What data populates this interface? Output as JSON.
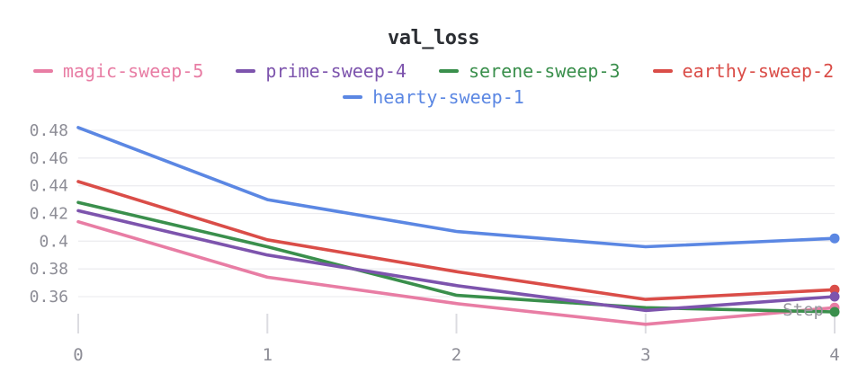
{
  "panel": {
    "title": "val_loss"
  },
  "chart_data": {
    "type": "line",
    "title": "val_loss",
    "xlabel": "Step",
    "ylabel": "",
    "x": [
      0,
      1,
      2,
      3,
      4
    ],
    "x_ticks": [
      0,
      1,
      2,
      3,
      4
    ],
    "y_ticks": [
      0.48,
      0.46,
      0.44,
      0.42,
      0.4,
      0.38,
      0.36
    ],
    "xlim": [
      0,
      4
    ],
    "ylim": [
      0.334,
      0.496
    ],
    "grid": "horizontal",
    "legend_position": "top",
    "endpoint_dot": true,
    "series": [
      {
        "name": "magic-sweep-5",
        "color": "#e87da4",
        "values": [
          0.414,
          0.374,
          0.355,
          0.34,
          0.352
        ]
      },
      {
        "name": "prime-sweep-4",
        "color": "#7d54ad",
        "values": [
          0.422,
          0.39,
          0.368,
          0.35,
          0.36
        ]
      },
      {
        "name": "serene-sweep-3",
        "color": "#3a8f4c",
        "values": [
          0.428,
          0.396,
          0.361,
          0.352,
          0.349
        ]
      },
      {
        "name": "earthy-sweep-2",
        "color": "#da4d48",
        "values": [
          0.443,
          0.401,
          0.378,
          0.358,
          0.365
        ]
      },
      {
        "name": "hearty-sweep-1",
        "color": "#5b87e3",
        "values": [
          0.482,
          0.43,
          0.407,
          0.396,
          0.402
        ]
      }
    ],
    "draw_order": [
      "hearty-sweep-1",
      "earthy-sweep-2",
      "magic-sweep-5",
      "serene-sweep-3",
      "prime-sweep-4"
    ]
  },
  "colors": {
    "background": "#ffffff",
    "title": "#2b2e33",
    "grid": "#ededf0",
    "tick_mark": "#dcdce1",
    "axis_label": "#8d8d96",
    "step_label": "#97979e"
  }
}
